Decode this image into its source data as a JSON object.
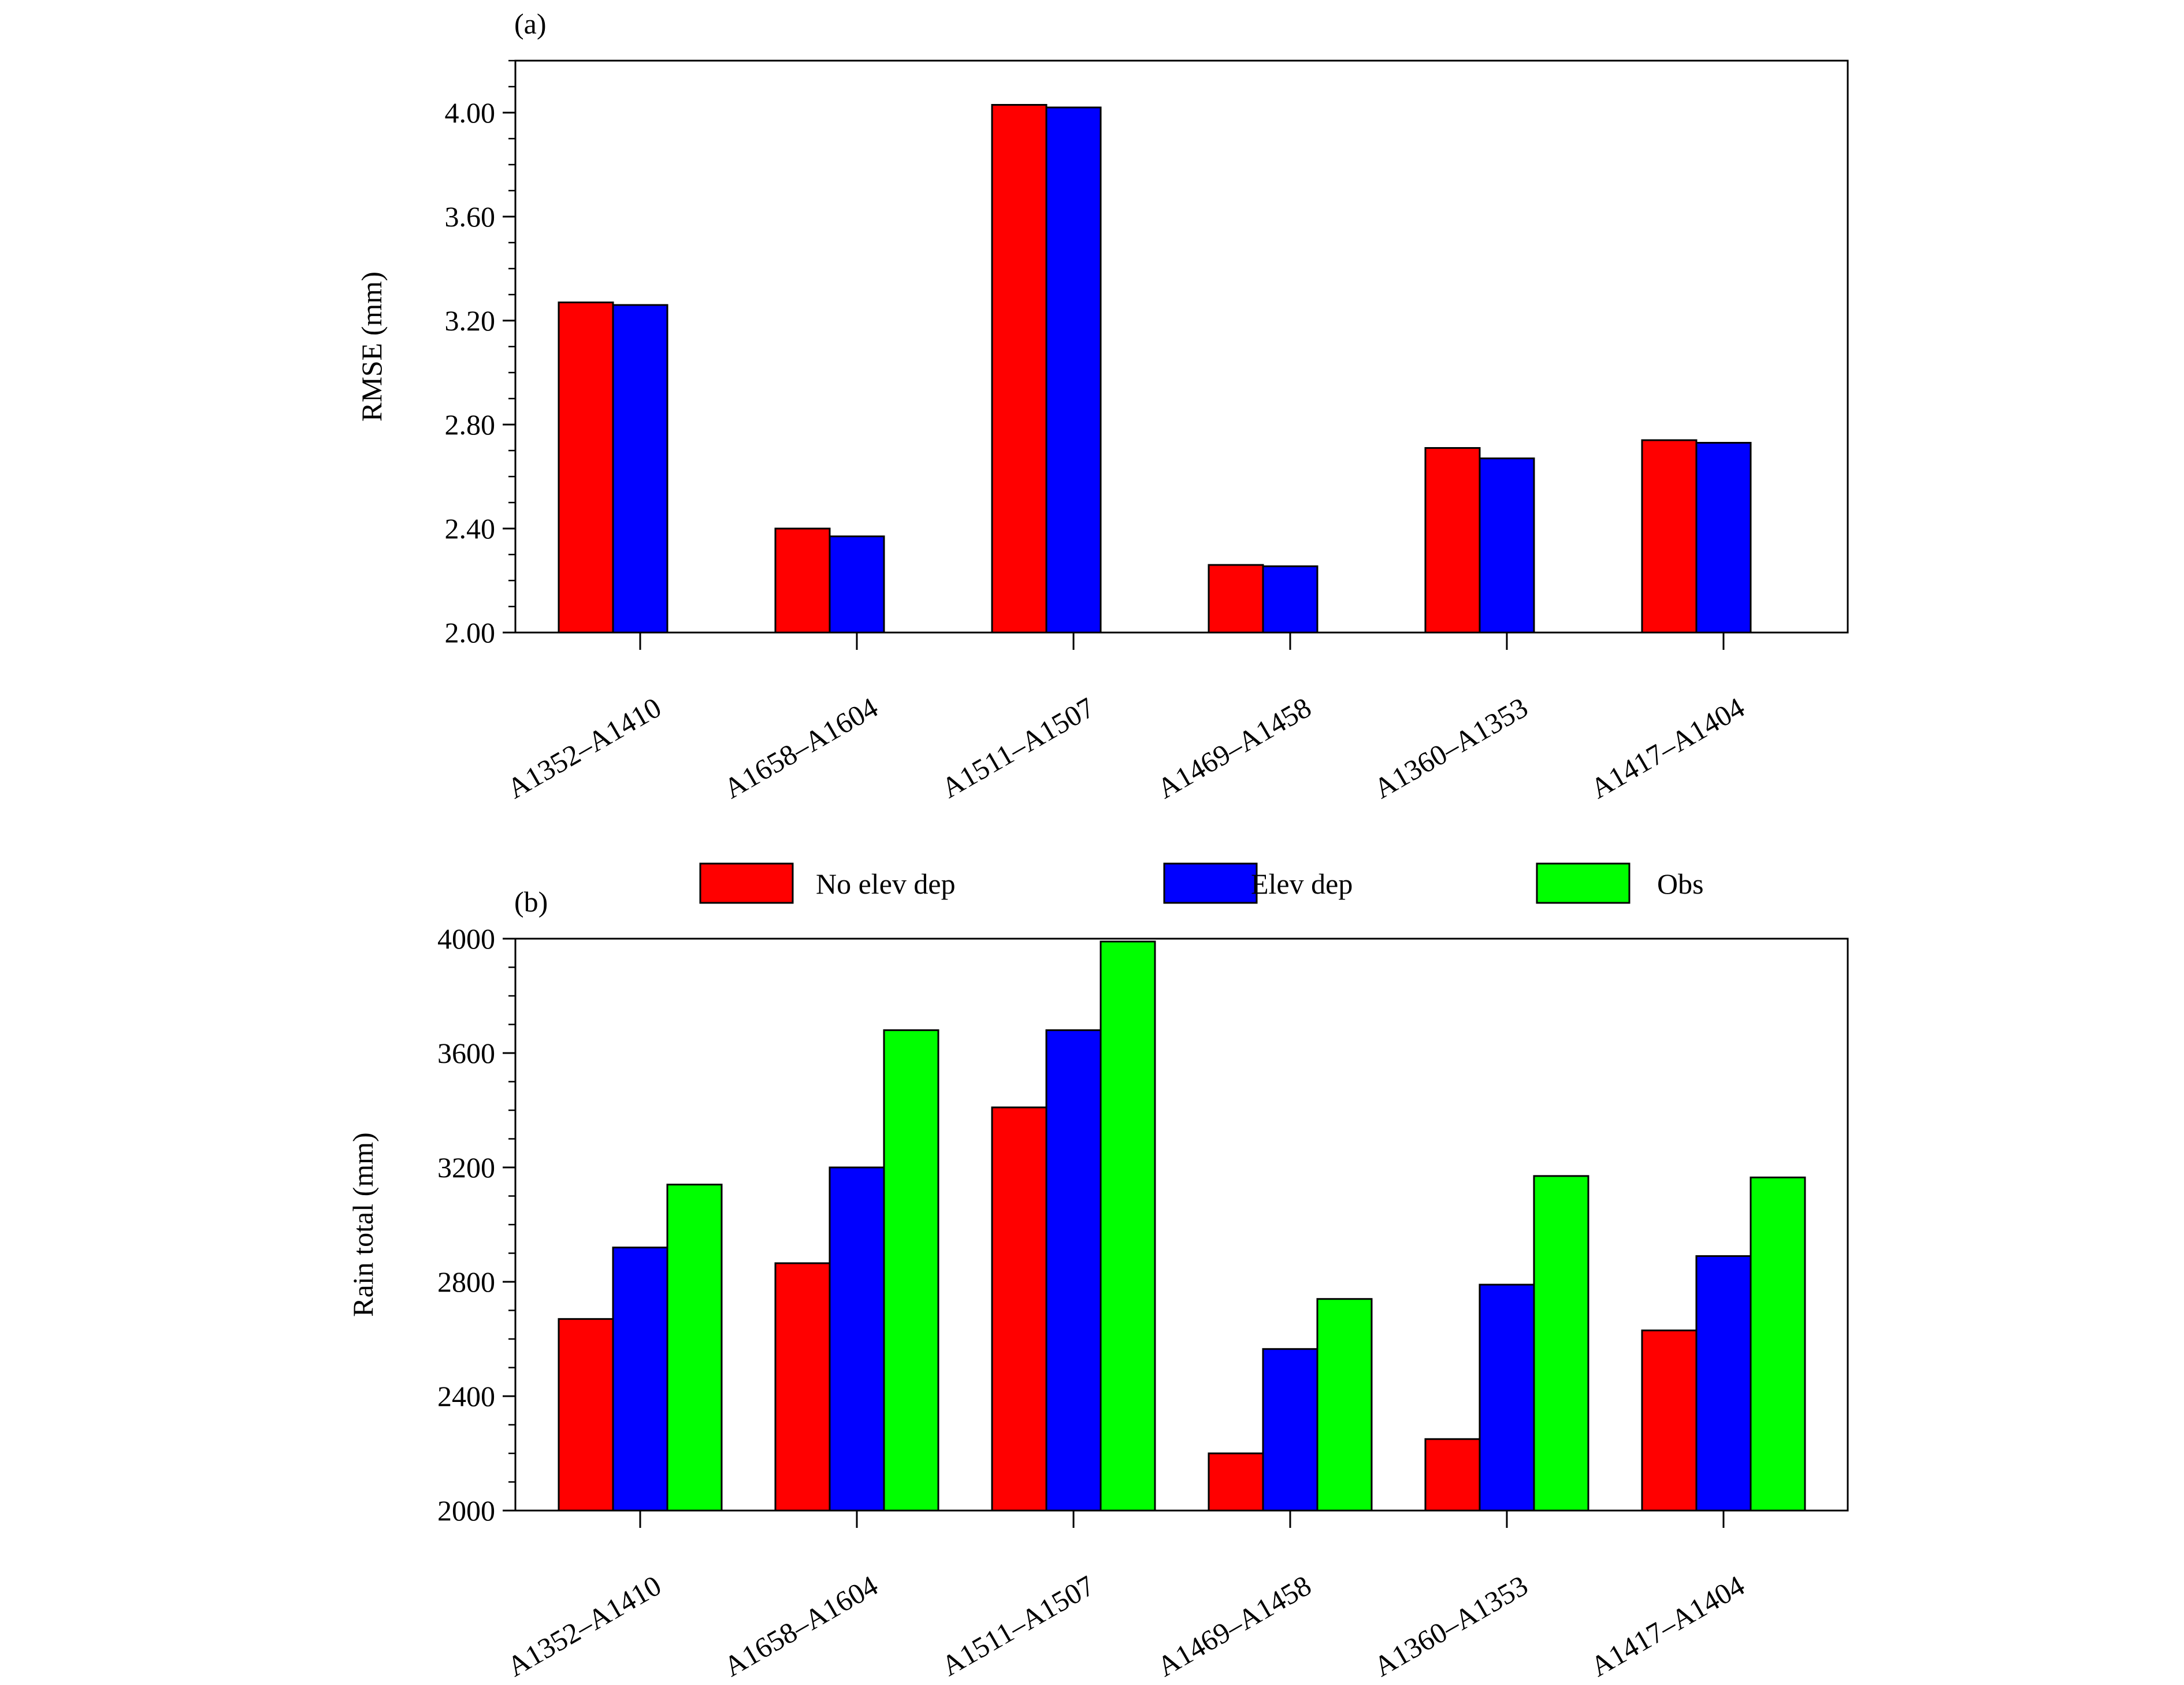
{
  "colors": {
    "no_elev_dep": "#ff0000",
    "elev_dep": "#0000ff",
    "obs": "#00ff00"
  },
  "legend": {
    "items": [
      {
        "label": "No elev dep",
        "color_key": "no_elev_dep"
      },
      {
        "label": "Elev dep",
        "color_key": "elev_dep"
      },
      {
        "label": "Obs",
        "color_key": "obs"
      }
    ]
  },
  "chart_data": [
    {
      "type": "bar",
      "panel_label": "(a)",
      "ylabel": "RMSE (mm)",
      "ylim": [
        2.0,
        4.2
      ],
      "yticks": [
        "2.00",
        "2.40",
        "2.80",
        "3.20",
        "3.60",
        "4.00"
      ],
      "ytick_values": [
        2.0,
        2.4,
        2.8,
        3.2,
        3.6,
        4.0
      ],
      "categories": [
        "A1352–A1410",
        "A1658–A1604",
        "A1511–A1507",
        "A1469–A1458",
        "A1360–A1353",
        "A1417–A1404"
      ],
      "group_slots": 3,
      "series": [
        {
          "name": "No elev dep",
          "color_key": "no_elev_dep",
          "values": [
            3.27,
            2.4,
            4.03,
            2.26,
            2.71,
            2.74
          ]
        },
        {
          "name": "Elev dep",
          "color_key": "elev_dep",
          "values": [
            3.26,
            2.37,
            4.02,
            2.255,
            2.67,
            2.73
          ]
        }
      ]
    },
    {
      "type": "bar",
      "panel_label": "(b)",
      "ylabel": "Rain total (mm)",
      "ylim": [
        2000,
        4000
      ],
      "yticks": [
        "2000",
        "2400",
        "2800",
        "3200",
        "3600",
        "4000"
      ],
      "ytick_values": [
        2000,
        2400,
        2800,
        3200,
        3600,
        4000
      ],
      "categories": [
        "A1352–A1410",
        "A1658–A1604",
        "A1511–A1507",
        "A1469–A1458",
        "A1360–A1353",
        "A1417–A1404"
      ],
      "group_slots": 3,
      "series": [
        {
          "name": "No elev dep",
          "color_key": "no_elev_dep",
          "values": [
            2670,
            2865,
            3410,
            2200,
            2250,
            2630
          ]
        },
        {
          "name": "Elev dep",
          "color_key": "elev_dep",
          "values": [
            2920,
            3200,
            3680,
            2565,
            2790,
            2890
          ]
        },
        {
          "name": "Obs",
          "color_key": "obs",
          "values": [
            3140,
            3680,
            3990,
            2740,
            3170,
            3165
          ]
        }
      ]
    }
  ]
}
